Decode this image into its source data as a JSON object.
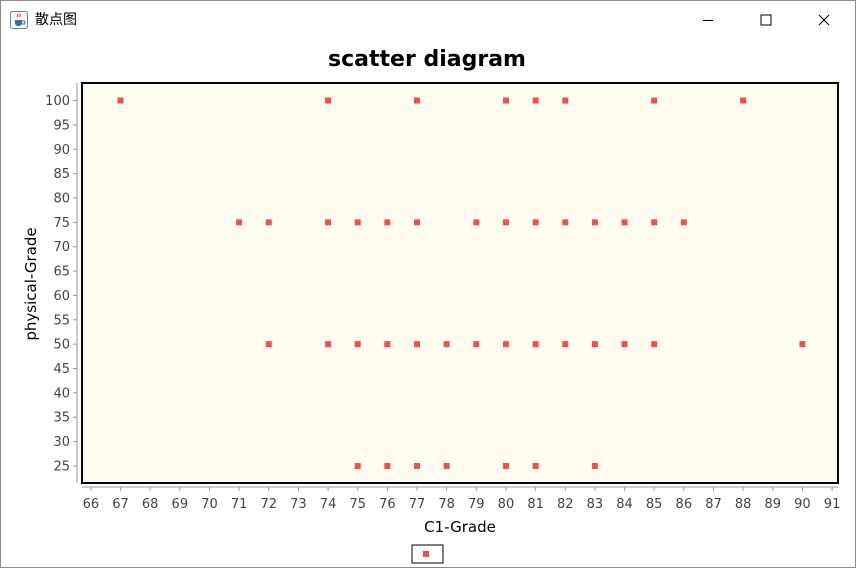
{
  "window": {
    "title": "散点图",
    "icons": {
      "app": "java-coffee-cup-icon",
      "minimize": "minimize-icon",
      "maximize": "maximize-icon",
      "close": "close-icon"
    }
  },
  "chart_data": {
    "type": "scatter",
    "title": "scatter diagram",
    "xlabel": "C1-Grade",
    "ylabel": "physical-Grade",
    "xlim": [
      65.7,
      91.2
    ],
    "ylim": [
      21.5,
      103.6
    ],
    "xticks": [
      66,
      67,
      68,
      69,
      70,
      71,
      72,
      73,
      74,
      75,
      76,
      77,
      78,
      79,
      80,
      81,
      82,
      83,
      84,
      85,
      86,
      87,
      88,
      89,
      90,
      91
    ],
    "yticks": [
      25,
      30,
      35,
      40,
      45,
      50,
      55,
      60,
      65,
      70,
      75,
      80,
      85,
      90,
      95,
      100
    ],
    "grid": false,
    "legend": "bottom-center",
    "colors": {
      "point": "#ee5050",
      "plot_background": "#fffcf2"
    },
    "series": [
      {
        "points": [
          [
            67,
            100
          ],
          [
            74,
            100
          ],
          [
            77,
            100
          ],
          [
            80,
            100
          ],
          [
            81,
            100
          ],
          [
            82,
            100
          ],
          [
            85,
            100
          ],
          [
            88,
            100
          ],
          [
            71,
            75
          ],
          [
            72,
            75
          ],
          [
            74,
            75
          ],
          [
            75,
            75
          ],
          [
            76,
            75
          ],
          [
            77,
            75
          ],
          [
            79,
            75
          ],
          [
            80,
            75
          ],
          [
            81,
            75
          ],
          [
            82,
            75
          ],
          [
            83,
            75
          ],
          [
            84,
            75
          ],
          [
            85,
            75
          ],
          [
            86,
            75
          ],
          [
            72,
            50
          ],
          [
            74,
            50
          ],
          [
            75,
            50
          ],
          [
            76,
            50
          ],
          [
            77,
            50
          ],
          [
            78,
            50
          ],
          [
            79,
            50
          ],
          [
            80,
            50
          ],
          [
            81,
            50
          ],
          [
            82,
            50
          ],
          [
            83,
            50
          ],
          [
            84,
            50
          ],
          [
            85,
            50
          ],
          [
            90,
            50
          ],
          [
            75,
            25
          ],
          [
            76,
            25
          ],
          [
            77,
            25
          ],
          [
            78,
            25
          ],
          [
            80,
            25
          ],
          [
            81,
            25
          ],
          [
            83,
            25
          ]
        ]
      }
    ]
  }
}
